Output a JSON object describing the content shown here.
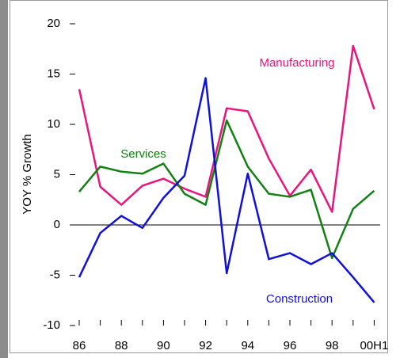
{
  "chart_data": {
    "type": "line",
    "y_label": "YOY % Growth",
    "categories": [
      "86",
      null,
      "88",
      null,
      "90",
      null,
      "92",
      null,
      "94",
      null,
      "96",
      null,
      "98",
      null,
      "00H1"
    ],
    "series": [
      {
        "name": "Manufacturing",
        "color": "#e8157f",
        "values": [
          13.5,
          3.8,
          2.0,
          3.9,
          4.6,
          3.6,
          2.8,
          11.6,
          11.3,
          6.6,
          2.9,
          5.5,
          1.3,
          17.8,
          11.5
        ]
      },
      {
        "name": "Services",
        "color": "#138013",
        "values": [
          3.3,
          5.8,
          5.3,
          5.1,
          6.1,
          3.1,
          2.0,
          10.4,
          5.8,
          3.1,
          2.8,
          3.5,
          -3.3,
          1.6,
          3.4
        ]
      },
      {
        "name": "Construction",
        "color": "#1010d8",
        "values": [
          -5.2,
          -0.8,
          0.9,
          -0.3,
          2.7,
          4.9,
          14.6,
          -4.8,
          5.1,
          -3.4,
          -2.8,
          -3.9,
          -2.8,
          -5.2,
          -7.7
        ]
      }
    ],
    "ylim": [
      -10,
      20
    ],
    "yticks": [
      -10,
      -5,
      0,
      5,
      10,
      15,
      20
    ]
  }
}
